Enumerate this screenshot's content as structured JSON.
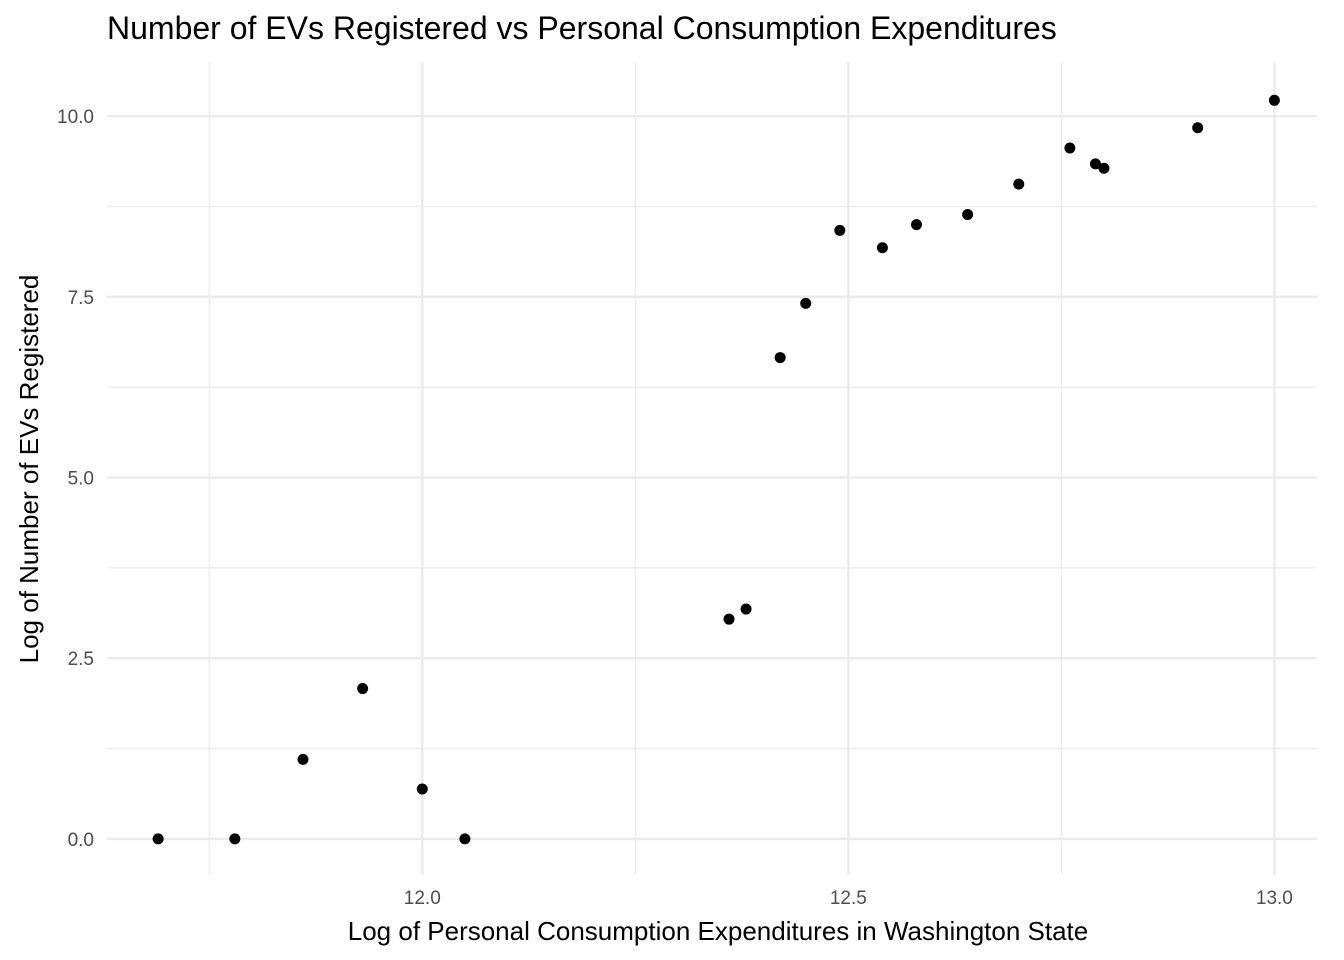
{
  "chart_data": {
    "type": "scatter",
    "title": "Number of EVs Registered vs Personal Consumption Expenditures",
    "xlabel": "Log of Personal Consumption Expenditures in Washington State",
    "ylabel": "Log of Number of EVs Registered",
    "xlim": [
      11.63,
      13.05
    ],
    "ylim": [
      -0.5,
      10.75
    ],
    "x_ticks": [
      12.0,
      12.5,
      13.0
    ],
    "x_tick_labels": [
      "12.0",
      "12.5",
      "13.0"
    ],
    "x_minor_ticks": [
      11.75,
      12.25,
      12.75
    ],
    "y_ticks": [
      0.0,
      2.5,
      5.0,
      7.5,
      10.0
    ],
    "y_tick_labels": [
      "0.0",
      "2.5",
      "5.0",
      "7.5",
      "10.0"
    ],
    "y_minor_ticks": [
      1.25,
      3.75,
      6.25,
      8.75
    ],
    "grid": true,
    "point_color": "#000000",
    "points": [
      {
        "x": 11.69,
        "y": 0.0
      },
      {
        "x": 11.78,
        "y": 0.0
      },
      {
        "x": 11.86,
        "y": 1.1
      },
      {
        "x": 11.93,
        "y": 2.08
      },
      {
        "x": 12.0,
        "y": 0.69
      },
      {
        "x": 12.05,
        "y": 0.0
      },
      {
        "x": 12.36,
        "y": 3.04
      },
      {
        "x": 12.38,
        "y": 3.18
      },
      {
        "x": 12.42,
        "y": 6.66
      },
      {
        "x": 12.45,
        "y": 7.41
      },
      {
        "x": 12.49,
        "y": 8.42
      },
      {
        "x": 12.54,
        "y": 8.18
      },
      {
        "x": 12.58,
        "y": 8.5
      },
      {
        "x": 12.64,
        "y": 8.64
      },
      {
        "x": 12.7,
        "y": 9.06
      },
      {
        "x": 12.76,
        "y": 9.56
      },
      {
        "x": 12.79,
        "y": 9.34
      },
      {
        "x": 12.8,
        "y": 9.28
      },
      {
        "x": 12.91,
        "y": 9.84
      },
      {
        "x": 13.0,
        "y": 10.22
      }
    ]
  }
}
